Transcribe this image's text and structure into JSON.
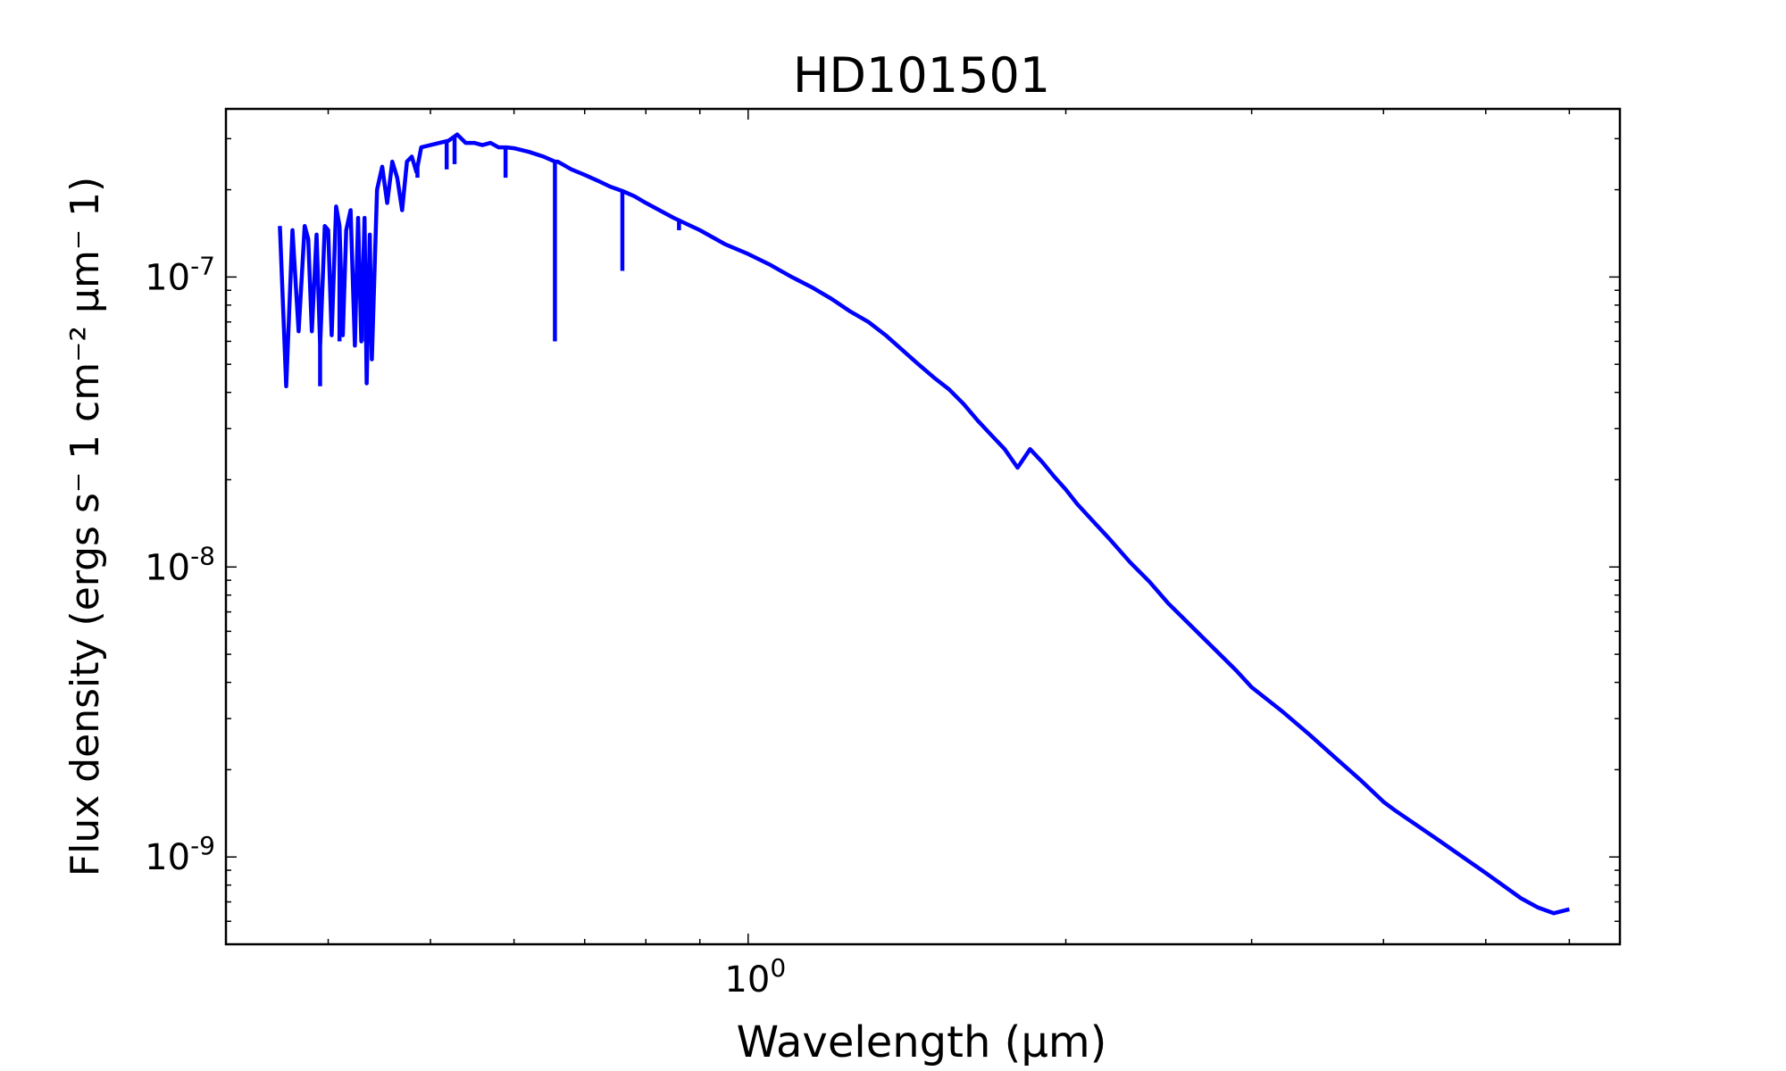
{
  "chart_data": {
    "type": "line",
    "title": "HD101501",
    "xlabel": "Wavelength (μm)",
    "ylabel": "Flux density (ergs s⁻ 1 cm⁻² μm⁻ 1)",
    "x_scale": "log",
    "y_scale": "log",
    "xlim": [
      0.32,
      6.7
    ],
    "ylim": [
      5e-10,
      3.8e-07
    ],
    "grid": false,
    "legend": "none",
    "x_major_ticks": [
      {
        "value": 1.0,
        "label": "10",
        "exp": "0"
      }
    ],
    "y_major_ticks": [
      {
        "value": 1e-07,
        "label": "10",
        "exp": "-7"
      },
      {
        "value": 1e-08,
        "label": "10",
        "exp": "-8"
      },
      {
        "value": 1e-09,
        "label": "10",
        "exp": "-9"
      }
    ],
    "series": [
      {
        "color": "#0000ff",
        "x": [
          0.36,
          0.365,
          0.37,
          0.375,
          0.38,
          0.383,
          0.386,
          0.39,
          0.393,
          0.397,
          0.4,
          0.403,
          0.407,
          0.41,
          0.413,
          0.416,
          0.42,
          0.424,
          0.427,
          0.43,
          0.433,
          0.435,
          0.438,
          0.44,
          0.445,
          0.45,
          0.455,
          0.46,
          0.465,
          0.47,
          0.475,
          0.48,
          0.485,
          0.49,
          0.5,
          0.51,
          0.52,
          0.53,
          0.54,
          0.55,
          0.56,
          0.57,
          0.58,
          0.59,
          0.6,
          0.62,
          0.64,
          0.656,
          0.66,
          0.68,
          0.7,
          0.72,
          0.74,
          0.76,
          0.78,
          0.8,
          0.85,
          0.9,
          0.95,
          1.0,
          1.05,
          1.1,
          1.15,
          1.2,
          1.25,
          1.3,
          1.35,
          1.4,
          1.45,
          1.5,
          1.55,
          1.6,
          1.65,
          1.7,
          1.75,
          1.8,
          1.85,
          1.9,
          1.95,
          2.0,
          2.05,
          2.1,
          2.2,
          2.3,
          2.4,
          2.5,
          2.9,
          3.0,
          3.2,
          3.4,
          3.6,
          3.8,
          4.0,
          4.1,
          4.5,
          5.0,
          5.4,
          5.6,
          5.8,
          6.0
        ],
        "y": [
          1.5e-07,
          4.2e-08,
          1.45e-07,
          6.5e-08,
          1.5e-07,
          1.35e-07,
          6.5e-08,
          1.4e-07,
          5.8e-08,
          1.5e-07,
          1.45e-07,
          6.3e-08,
          1.75e-07,
          1.5e-07,
          6.3e-08,
          1.45e-07,
          1.7e-07,
          5.8e-08,
          1.6e-07,
          6e-08,
          1.6e-07,
          4.3e-08,
          1.4e-07,
          5.2e-08,
          2e-07,
          2.4e-07,
          1.8e-07,
          2.5e-07,
          2.2e-07,
          1.7e-07,
          2.5e-07,
          2.6e-07,
          2.3e-07,
          2.8e-07,
          2.85e-07,
          2.9e-07,
          2.95e-07,
          3.1e-07,
          2.9e-07,
          2.9e-07,
          2.85e-07,
          2.9e-07,
          2.8e-07,
          2.8e-07,
          2.78e-07,
          2.7e-07,
          2.6e-07,
          2.5e-07,
          2.5e-07,
          2.35e-07,
          2.25e-07,
          2.15e-07,
          2.05e-07,
          1.98e-07,
          1.9e-07,
          1.8e-07,
          1.6e-07,
          1.45e-07,
          1.3e-07,
          1.2e-07,
          1.1e-07,
          1e-07,
          9.2e-08,
          8.4e-08,
          7.6e-08,
          7e-08,
          6.3e-08,
          5.6e-08,
          5e-08,
          4.5e-08,
          4.1e-08,
          3.65e-08,
          3.2e-08,
          2.85e-08,
          2.55e-08,
          2.2e-08,
          2.55e-08,
          2.3e-08,
          2.05e-08,
          1.85e-08,
          1.65e-08,
          1.5e-08,
          1.25e-08,
          1.04e-08,
          8.9e-09,
          7.5e-09,
          4.4e-09,
          3.85e-09,
          3.2e-09,
          2.65e-09,
          2.2e-09,
          1.85e-09,
          1.55e-09,
          1.45e-09,
          1.15e-09,
          8.8e-10,
          7.2e-10,
          6.7e-10,
          6.4e-10,
          6.6e-10
        ]
      }
    ],
    "absorption_lines": [
      {
        "x": 0.393,
        "y": 4.2e-08
      },
      {
        "x": 0.41,
        "y": 6e-08
      },
      {
        "x": 0.434,
        "y": 6e-08
      },
      {
        "x": 0.486,
        "y": 2.2e-07
      },
      {
        "x": 0.518,
        "y": 2.35e-07
      },
      {
        "x": 0.527,
        "y": 2.45e-07
      },
      {
        "x": 0.589,
        "y": 2.2e-07
      },
      {
        "x": 0.656,
        "y": 6e-08
      },
      {
        "x": 0.76,
        "y": 1.05e-07
      },
      {
        "x": 0.86,
        "y": 1.45e-07
      }
    ]
  }
}
